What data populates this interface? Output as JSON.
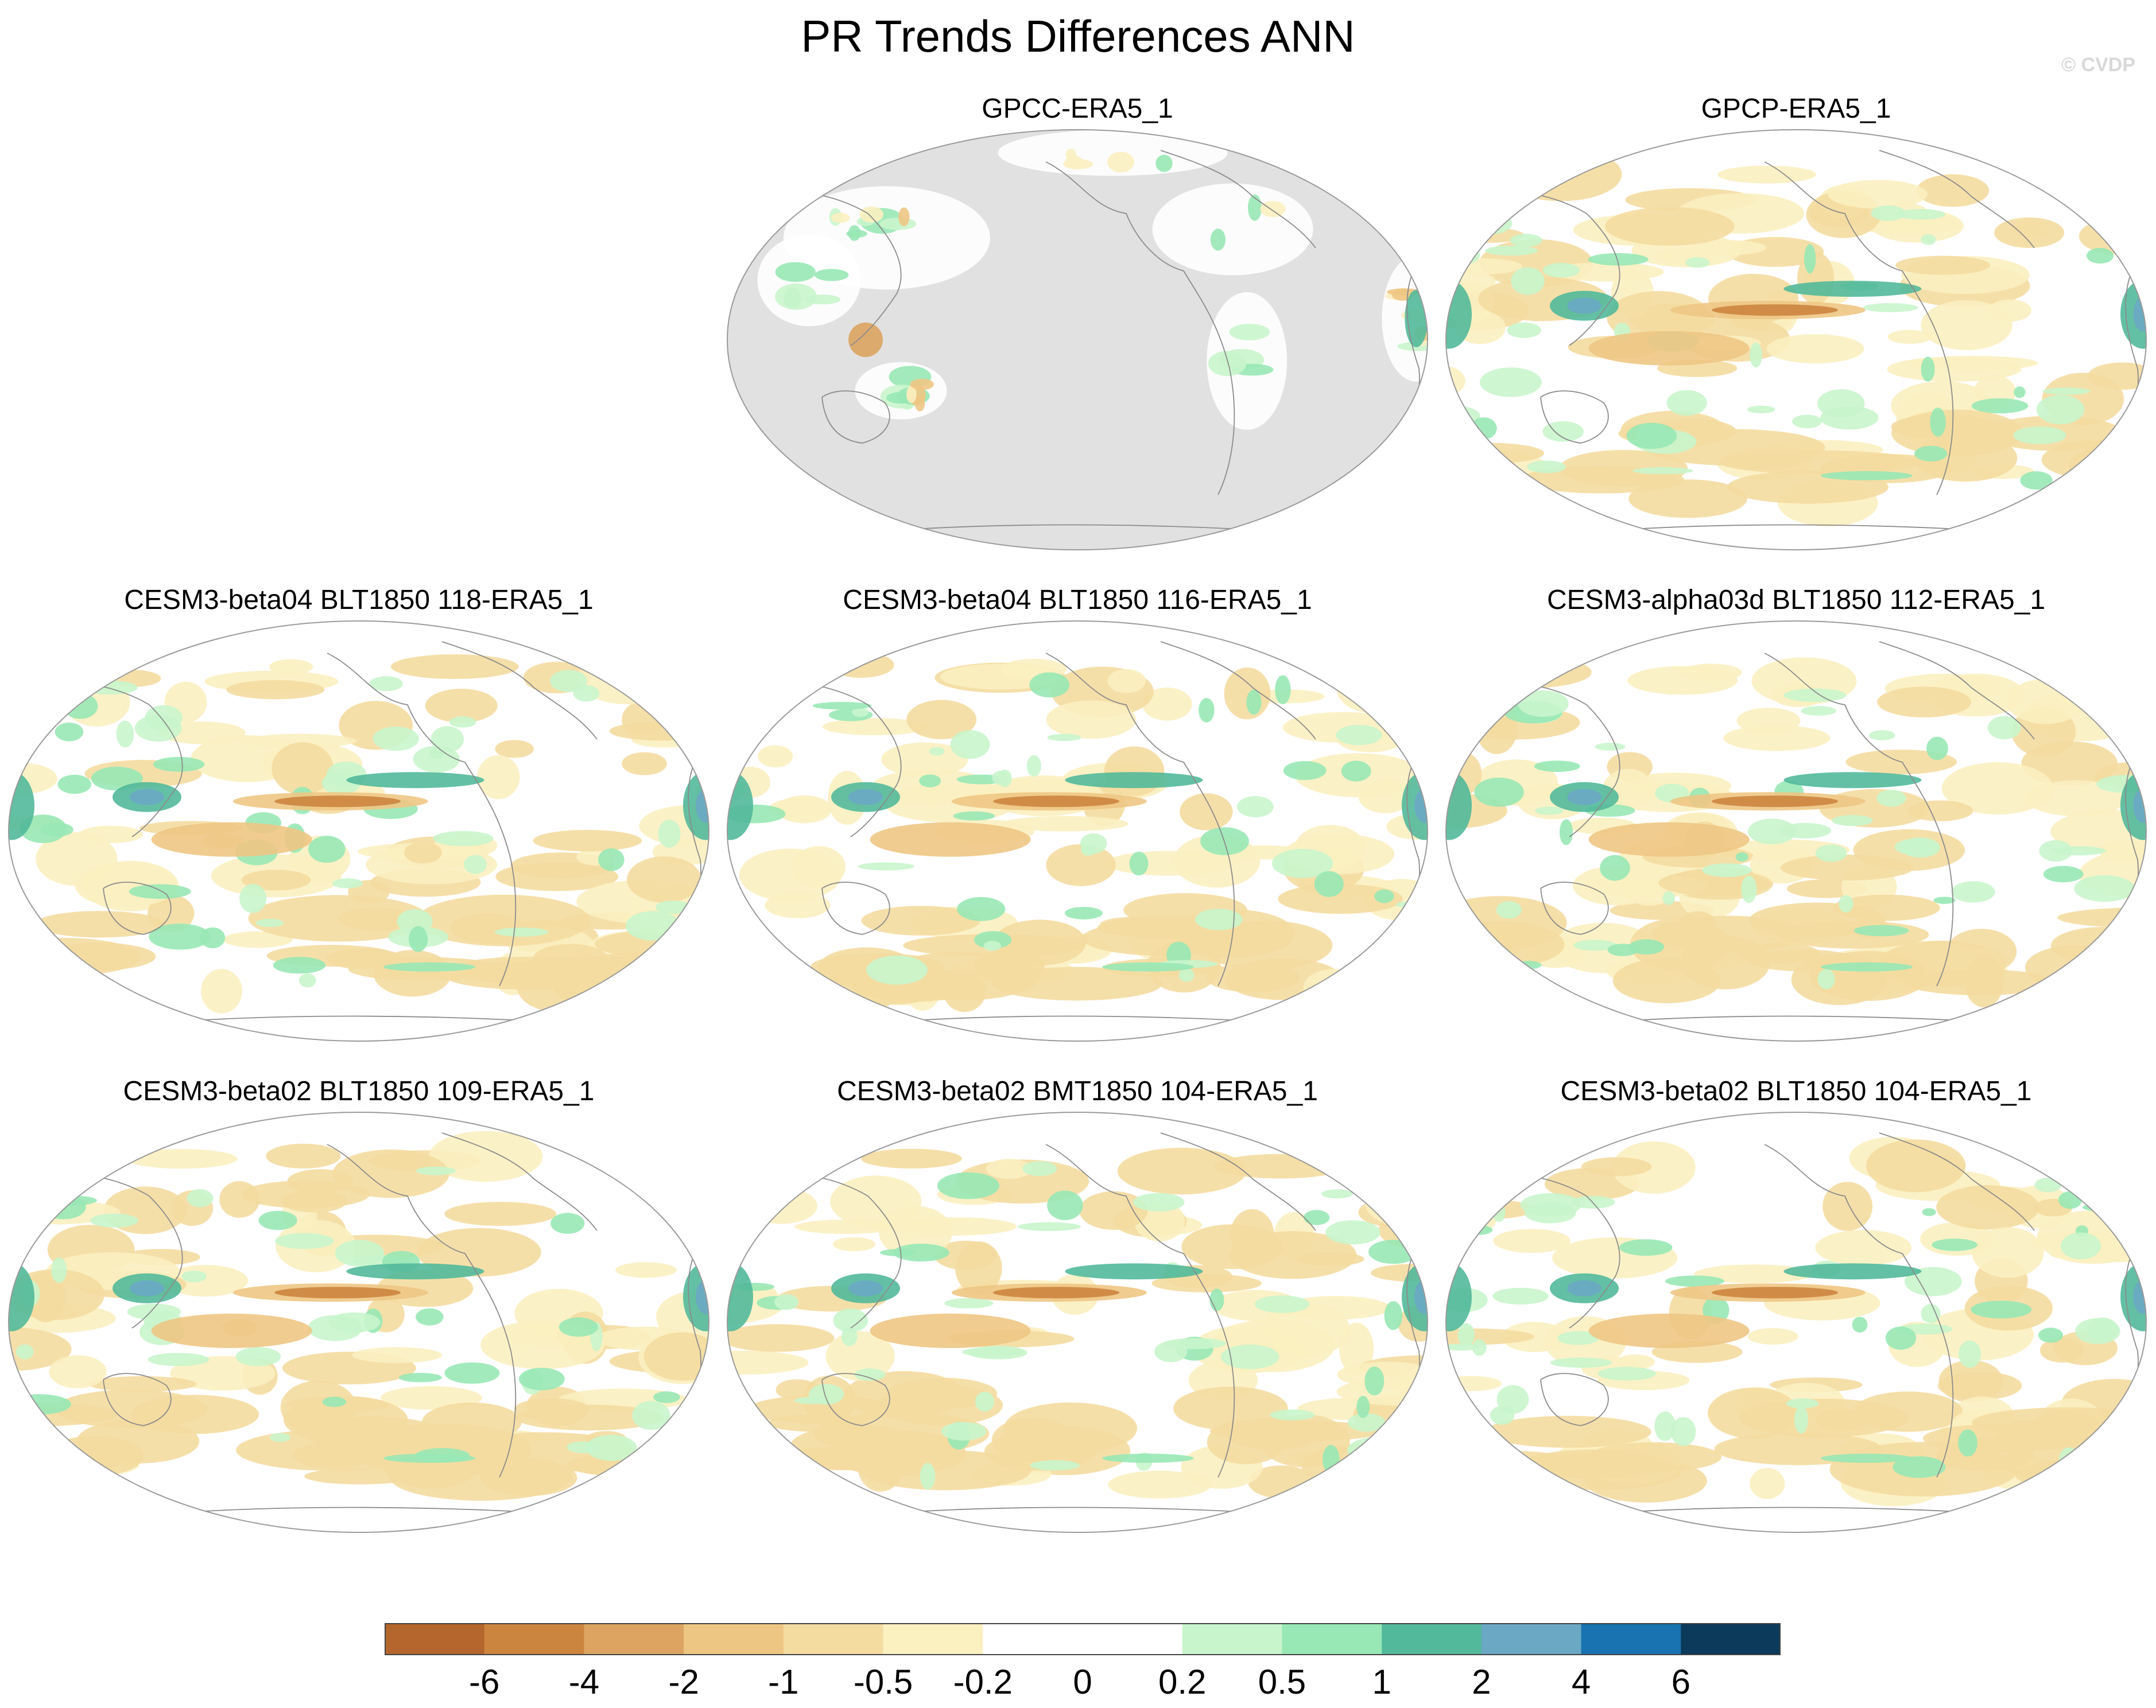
{
  "title": "PR Trends Differences ANN",
  "watermark": "© CVDP",
  "panels": [
    {
      "name": "gpcc",
      "title": "GPCC-ERA5_1",
      "style": "land",
      "seed": 3
    },
    {
      "name": "gpcp",
      "title": "GPCP-ERA5_1",
      "style": "ocean",
      "seed": 7
    },
    {
      "name": "beta04-118",
      "title": "CESM3-beta04 BLT1850 118-ERA5_1",
      "style": "ocean",
      "seed": 11
    },
    {
      "name": "beta04-116",
      "title": "CESM3-beta04 BLT1850 116-ERA5_1",
      "style": "ocean",
      "seed": 17
    },
    {
      "name": "alpha03d-112",
      "title": "CESM3-alpha03d BLT1850 112-ERA5_1",
      "style": "ocean",
      "seed": 23
    },
    {
      "name": "beta02-blt-109",
      "title": "CESM3-beta02 BLT1850 109-ERA5_1",
      "style": "ocean",
      "seed": 29
    },
    {
      "name": "beta02-bmt-104",
      "title": "CESM3-beta02 BMT1850 104-ERA5_1",
      "style": "ocean",
      "seed": 31
    },
    {
      "name": "beta02-blt-104",
      "title": "CESM3-beta02 BLT1850 104-ERA5_1",
      "style": "ocean",
      "seed": 37
    }
  ],
  "colorbar": {
    "colors": [
      "#b5662c",
      "#cc853f",
      "#dca460",
      "#eec684",
      "#f4dca0",
      "#fbf0c0",
      "#ffffff",
      "#ffffff",
      "#c9f5cc",
      "#98e8b5",
      "#52b99a",
      "#6aa8c4",
      "#1873b0",
      "#0b3a5a"
    ],
    "labels": [
      "-6",
      "-4",
      "-2",
      "-1",
      "-0.5",
      "-0.2",
      "0",
      "0.2",
      "0.5",
      "1",
      "2",
      "4",
      "6"
    ]
  },
  "colors": {
    "land_mask": "#e1e1e1",
    "coastline": "#8c8c8c",
    "outline": "#9a9a9a"
  }
}
